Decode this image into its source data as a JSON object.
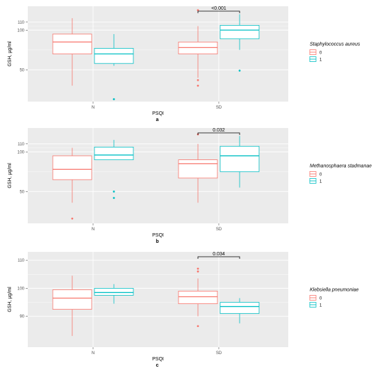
{
  "colors": {
    "group_0": "#F8766D",
    "group_1": "#00BFC4",
    "panel_bg": "#EBEBEB",
    "grid": "#FFFFFF"
  },
  "chart_data": [
    {
      "type": "box",
      "panel_label": "a",
      "xlabel": "PSQI",
      "ylabel": "GSH, µg/ml",
      "categories": [
        "N",
        "SD"
      ],
      "yticks": [
        50,
        100,
        110
      ],
      "ylim": [
        10,
        130
      ],
      "grid": true,
      "legend": {
        "title": "Staphylococcus aureus",
        "placement": "right",
        "entries": [
          "0",
          "1"
        ]
      },
      "annotation": {
        "text": "<0.001",
        "category": "SD"
      },
      "series": [
        {
          "name": "0",
          "boxes": [
            {
              "category": "N",
              "whisker_low": 30,
              "q1": 70,
              "median": 85,
              "q3": 95,
              "whisker_high": 115,
              "outliers": []
            },
            {
              "category": "SD",
              "whisker_low": 40,
              "q1": 70,
              "median": 78,
              "q3": 85,
              "whisker_high": 105,
              "outliers": [
                125,
                37,
                30
              ]
            }
          ]
        },
        {
          "name": "1",
          "boxes": [
            {
              "category": "N",
              "whisker_low": 55,
              "q1": 58,
              "median": 70,
              "q3": 77,
              "whisker_high": 95,
              "outliers": [
                13
              ]
            },
            {
              "category": "SD",
              "whisker_low": 75,
              "q1": 89,
              "median": 100,
              "q3": 106,
              "whisker_high": 120,
              "outliers": [
                49
              ]
            }
          ]
        }
      ]
    },
    {
      "type": "box",
      "panel_label": "b",
      "xlabel": "PSQI",
      "ylabel": "GSH, µg/ml",
      "categories": [
        "N",
        "SD"
      ],
      "yticks": [
        50,
        100,
        110
      ],
      "ylim": [
        10,
        130
      ],
      "grid": true,
      "legend": {
        "title": "Methanosphaera stadmanae",
        "placement": "right",
        "entries": [
          "0",
          "1"
        ]
      },
      "annotation": {
        "text": "0.032",
        "category": "SD"
      },
      "series": [
        {
          "name": "0",
          "boxes": [
            {
              "category": "N",
              "whisker_low": 36,
              "q1": 65,
              "median": 78,
              "q3": 95,
              "whisker_high": 105,
              "outliers": [
                16
              ]
            },
            {
              "category": "SD",
              "whisker_low": 36,
              "q1": 67,
              "median": 85,
              "q3": 90,
              "whisker_high": 110,
              "outliers": [
                122
              ]
            }
          ]
        },
        {
          "name": "1",
          "boxes": [
            {
              "category": "N",
              "whisker_low": 90,
              "q1": 90,
              "median": 96,
              "q3": 106,
              "whisker_high": 115,
              "outliers": [
                50,
                42
              ]
            },
            {
              "category": "SD",
              "whisker_low": 55,
              "q1": 75,
              "median": 95,
              "q3": 107,
              "whisker_high": 120,
              "outliers": []
            }
          ]
        }
      ]
    },
    {
      "type": "box",
      "panel_label": "c",
      "xlabel": "PSQI",
      "ylabel": "GSH, µg/ml",
      "categories": [
        "N",
        "SD"
      ],
      "yticks": [
        90,
        100,
        110
      ],
      "ylim": [
        79,
        113
      ],
      "grid": true,
      "legend": {
        "title": "Klebsiella pneumoniae",
        "placement": "right",
        "entries": [
          "0",
          "1"
        ]
      },
      "annotation": {
        "text": "0.034",
        "category": "SD"
      },
      "series": [
        {
          "name": "0",
          "boxes": [
            {
              "category": "N",
              "whisker_low": 83,
              "q1": 92.5,
              "median": 96.5,
              "q3": 99.5,
              "whisker_high": 104.5,
              "outliers": []
            },
            {
              "category": "SD",
              "whisker_low": 90,
              "q1": 94.5,
              "median": 97,
              "q3": 99,
              "whisker_high": 103.5,
              "outliers": [
                106,
                107,
                86.5
              ]
            }
          ]
        },
        {
          "name": "1",
          "boxes": [
            {
              "category": "N",
              "whisker_low": 94.5,
              "q1": 97.5,
              "median": 98.5,
              "q3": 100,
              "whisker_high": 101.5,
              "outliers": []
            },
            {
              "category": "SD",
              "whisker_low": 87.5,
              "q1": 91,
              "median": 93.5,
              "q3": 95,
              "whisker_high": 96.5,
              "outliers": []
            }
          ]
        }
      ]
    }
  ]
}
